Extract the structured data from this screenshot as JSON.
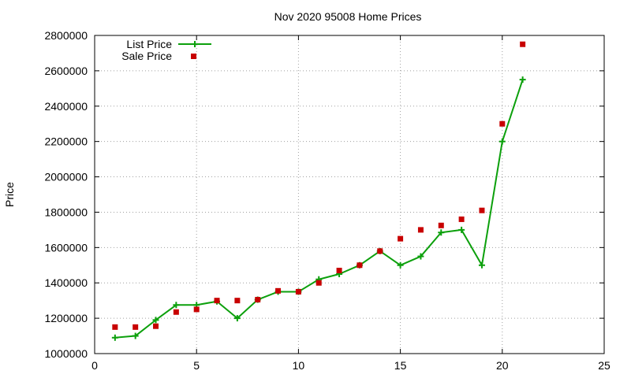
{
  "chart_data": {
    "type": "line",
    "title": "Nov 2020 95008 Home Prices",
    "xlabel": "",
    "ylabel": "Price",
    "xlim": [
      0,
      25
    ],
    "ylim": [
      1000000,
      2800000
    ],
    "xticks": [
      0,
      5,
      10,
      15,
      20,
      25
    ],
    "yticks": [
      1000000,
      1200000,
      1400000,
      1600000,
      1800000,
      2000000,
      2200000,
      2400000,
      2600000,
      2800000
    ],
    "grid": true,
    "legend_position": "top-left",
    "series": [
      {
        "name": "List Price",
        "style": "line-with-plus-markers",
        "color": "#0ca00c",
        "x": [
          1,
          2,
          3,
          4,
          5,
          6,
          7,
          8,
          9,
          10,
          11,
          12,
          13,
          14,
          15,
          16,
          17,
          18,
          19,
          20,
          21
        ],
        "y": [
          1090000,
          1100000,
          1190000,
          1275000,
          1275000,
          1295000,
          1200000,
          1305000,
          1350000,
          1350000,
          1420000,
          1450000,
          1500000,
          1580000,
          1500000,
          1550000,
          1685000,
          1700000,
          1500000,
          2200000,
          2550000
        ]
      },
      {
        "name": "Sale Price",
        "style": "square-markers",
        "color": "#c80000",
        "x": [
          1,
          2,
          3,
          4,
          5,
          6,
          7,
          8,
          9,
          10,
          11,
          12,
          13,
          14,
          15,
          16,
          17,
          18,
          19,
          20,
          21
        ],
        "y": [
          1150000,
          1150000,
          1155000,
          1235000,
          1250000,
          1300000,
          1300000,
          1305000,
          1355000,
          1350000,
          1400000,
          1470000,
          1500000,
          1580000,
          1650000,
          1700000,
          1725000,
          1760000,
          1810000,
          2300000,
          2750000
        ]
      }
    ]
  }
}
